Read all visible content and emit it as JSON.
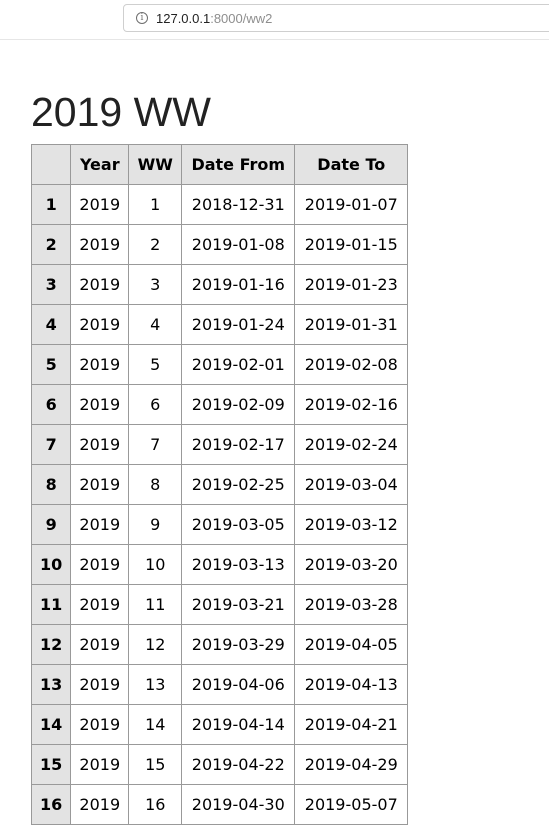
{
  "browser": {
    "url_host": "127.0.0.1",
    "url_path": ":8000/ww2",
    "info_glyph": "i"
  },
  "page": {
    "title": "2019 WW"
  },
  "table": {
    "columns": [
      "",
      "Year",
      "WW",
      "Date From",
      "Date To"
    ],
    "rows": [
      {
        "index": "1",
        "year": "2019",
        "ww": "1",
        "from": "2018-12-31",
        "to": "2019-01-07"
      },
      {
        "index": "2",
        "year": "2019",
        "ww": "2",
        "from": "2019-01-08",
        "to": "2019-01-15"
      },
      {
        "index": "3",
        "year": "2019",
        "ww": "3",
        "from": "2019-01-16",
        "to": "2019-01-23"
      },
      {
        "index": "4",
        "year": "2019",
        "ww": "4",
        "from": "2019-01-24",
        "to": "2019-01-31"
      },
      {
        "index": "5",
        "year": "2019",
        "ww": "5",
        "from": "2019-02-01",
        "to": "2019-02-08"
      },
      {
        "index": "6",
        "year": "2019",
        "ww": "6",
        "from": "2019-02-09",
        "to": "2019-02-16"
      },
      {
        "index": "7",
        "year": "2019",
        "ww": "7",
        "from": "2019-02-17",
        "to": "2019-02-24"
      },
      {
        "index": "8",
        "year": "2019",
        "ww": "8",
        "from": "2019-02-25",
        "to": "2019-03-04"
      },
      {
        "index": "9",
        "year": "2019",
        "ww": "9",
        "from": "2019-03-05",
        "to": "2019-03-12"
      },
      {
        "index": "10",
        "year": "2019",
        "ww": "10",
        "from": "2019-03-13",
        "to": "2019-03-20"
      },
      {
        "index": "11",
        "year": "2019",
        "ww": "11",
        "from": "2019-03-21",
        "to": "2019-03-28"
      },
      {
        "index": "12",
        "year": "2019",
        "ww": "12",
        "from": "2019-03-29",
        "to": "2019-04-05"
      },
      {
        "index": "13",
        "year": "2019",
        "ww": "13",
        "from": "2019-04-06",
        "to": "2019-04-13"
      },
      {
        "index": "14",
        "year": "2019",
        "ww": "14",
        "from": "2019-04-14",
        "to": "2019-04-21"
      },
      {
        "index": "15",
        "year": "2019",
        "ww": "15",
        "from": "2019-04-22",
        "to": "2019-04-29"
      },
      {
        "index": "16",
        "year": "2019",
        "ww": "16",
        "from": "2019-04-30",
        "to": "2019-05-07"
      }
    ]
  }
}
